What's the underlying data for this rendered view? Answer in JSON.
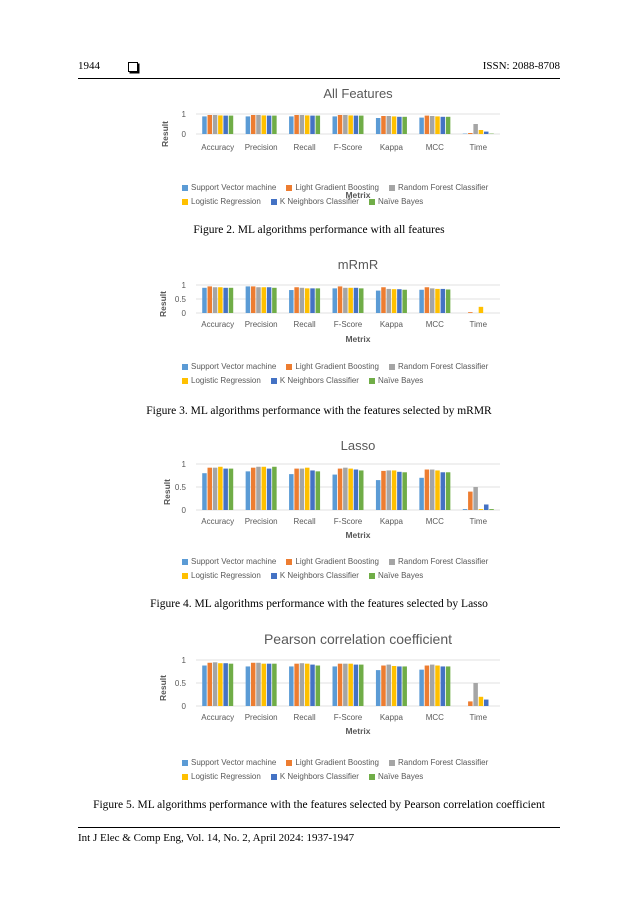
{
  "header": {
    "page_number": "1944",
    "issn": "ISSN: 2088-8708"
  },
  "footer": {
    "citation": "Int J Elec & Comp Eng, Vol. 14, No. 2, April 2024: 1937-1947"
  },
  "colors": {
    "Support Vector machine": "#5b9bd5",
    "Light Gradient Boosting": "#ed7d31",
    "Random Forest Classifier": "#a5a5a5",
    "Logistic Regression": "#ffc000",
    "K Neighbors Classifier": "#4472c4",
    "Naïve Bayes": "#70ad47"
  },
  "figures": [
    {
      "caption": "Figure 2. ML algorithms performance with all features"
    },
    {
      "caption": "Figure 3. ML algorithms performance with the features selected by mRMR"
    },
    {
      "caption": "Figure 4. ML algorithms performance with the features selected by Lasso"
    },
    {
      "caption": "Figure 5. ML algorithms performance with the features selected by Pearson correlation coefficient"
    }
  ],
  "chart_data": [
    {
      "type": "bar",
      "title": "All Features",
      "xlabel": "Metrix",
      "ylabel": "Result",
      "yticks": [
        "0",
        "1"
      ],
      "ylim": [
        0,
        1
      ],
      "legend_position": "bottom",
      "categories": [
        "Accuracy",
        "Precision",
        "Recall",
        "F-Score",
        "Kappa",
        "MCC",
        "Time"
      ],
      "series": [
        {
          "name": "Support Vector machine",
          "values": [
            0.88,
            0.88,
            0.88,
            0.88,
            0.8,
            0.82,
            0.02
          ]
        },
        {
          "name": "Light Gradient Boosting",
          "values": [
            0.95,
            0.95,
            0.95,
            0.95,
            0.9,
            0.92,
            0.05
          ]
        },
        {
          "name": "Random Forest Classifier",
          "values": [
            0.95,
            0.95,
            0.95,
            0.95,
            0.9,
            0.9,
            0.5
          ]
        },
        {
          "name": "Logistic Regression",
          "values": [
            0.93,
            0.93,
            0.93,
            0.93,
            0.88,
            0.88,
            0.2
          ]
        },
        {
          "name": "K Neighbors Classifier",
          "values": [
            0.92,
            0.92,
            0.92,
            0.92,
            0.86,
            0.86,
            0.12
          ]
        },
        {
          "name": "Naïve Bayes",
          "values": [
            0.92,
            0.92,
            0.92,
            0.92,
            0.86,
            0.86,
            0.02
          ]
        }
      ]
    },
    {
      "type": "bar",
      "title": "mRmR",
      "xlabel": "Metrix",
      "ylabel": "Result",
      "yticks": [
        "0",
        "0.5",
        "1"
      ],
      "ylim": [
        0,
        1
      ],
      "legend_position": "bottom",
      "categories": [
        "Accuracy",
        "Precision",
        "Recall",
        "F-Score",
        "Kappa",
        "MCC",
        "Time"
      ],
      "series": [
        {
          "name": "Support Vector machine",
          "values": [
            0.9,
            0.95,
            0.82,
            0.88,
            0.8,
            0.83,
            0.0
          ]
        },
        {
          "name": "Light Gradient Boosting",
          "values": [
            0.95,
            0.95,
            0.92,
            0.95,
            0.92,
            0.92,
            0.03
          ]
        },
        {
          "name": "Random Forest Classifier",
          "values": [
            0.92,
            0.92,
            0.9,
            0.9,
            0.86,
            0.88,
            0.0
          ]
        },
        {
          "name": "Logistic Regression",
          "values": [
            0.92,
            0.92,
            0.88,
            0.9,
            0.85,
            0.86,
            0.22
          ]
        },
        {
          "name": "K Neighbors Classifier",
          "values": [
            0.9,
            0.92,
            0.88,
            0.9,
            0.85,
            0.86,
            0.0
          ]
        },
        {
          "name": "Naïve Bayes",
          "values": [
            0.9,
            0.9,
            0.88,
            0.88,
            0.83,
            0.84,
            0.0
          ]
        }
      ]
    },
    {
      "type": "bar",
      "title": "Lasso",
      "xlabel": "Metrix",
      "ylabel": "Result",
      "yticks": [
        "0",
        "0.5",
        "1"
      ],
      "ylim": [
        0,
        1
      ],
      "legend_position": "bottom",
      "categories": [
        "Accuracy",
        "Precision",
        "Recall",
        "F-Score",
        "Kappa",
        "MCC",
        "Time"
      ],
      "series": [
        {
          "name": "Support Vector machine",
          "values": [
            0.8,
            0.84,
            0.78,
            0.77,
            0.65,
            0.7,
            0.02
          ]
        },
        {
          "name": "Light Gradient Boosting",
          "values": [
            0.92,
            0.92,
            0.9,
            0.9,
            0.85,
            0.88,
            0.4
          ]
        },
        {
          "name": "Random Forest Classifier",
          "values": [
            0.92,
            0.94,
            0.9,
            0.92,
            0.86,
            0.88,
            0.5
          ]
        },
        {
          "name": "Logistic Regression",
          "values": [
            0.94,
            0.94,
            0.92,
            0.9,
            0.86,
            0.86,
            0.02
          ]
        },
        {
          "name": "K Neighbors Classifier",
          "values": [
            0.9,
            0.9,
            0.86,
            0.88,
            0.83,
            0.82,
            0.12
          ]
        },
        {
          "name": "Naïve Bayes",
          "values": [
            0.9,
            0.94,
            0.84,
            0.86,
            0.82,
            0.82,
            0.02
          ]
        }
      ]
    },
    {
      "type": "bar",
      "title": "Pearson correlation coefficient",
      "xlabel": "Metrix",
      "ylabel": "Result",
      "yticks": [
        "0",
        "0.5",
        "1"
      ],
      "ylim": [
        0,
        1
      ],
      "legend_position": "bottom",
      "categories": [
        "Accuracy",
        "Precision",
        "Recall",
        "F-Score",
        "Kappa",
        "MCC",
        "Time"
      ],
      "series": [
        {
          "name": "Support Vector machine",
          "values": [
            0.88,
            0.86,
            0.86,
            0.86,
            0.78,
            0.79,
            0.0
          ]
        },
        {
          "name": "Light Gradient Boosting",
          "values": [
            0.94,
            0.94,
            0.92,
            0.92,
            0.88,
            0.88,
            0.1
          ]
        },
        {
          "name": "Random Forest Classifier",
          "values": [
            0.95,
            0.94,
            0.93,
            0.92,
            0.9,
            0.9,
            0.5
          ]
        },
        {
          "name": "Logistic Regression",
          "values": [
            0.93,
            0.92,
            0.92,
            0.92,
            0.87,
            0.88,
            0.2
          ]
        },
        {
          "name": "K Neighbors Classifier",
          "values": [
            0.93,
            0.92,
            0.9,
            0.9,
            0.86,
            0.86,
            0.14
          ]
        },
        {
          "name": "Naïve Bayes",
          "values": [
            0.92,
            0.92,
            0.88,
            0.9,
            0.86,
            0.86,
            0.0
          ]
        }
      ]
    }
  ]
}
